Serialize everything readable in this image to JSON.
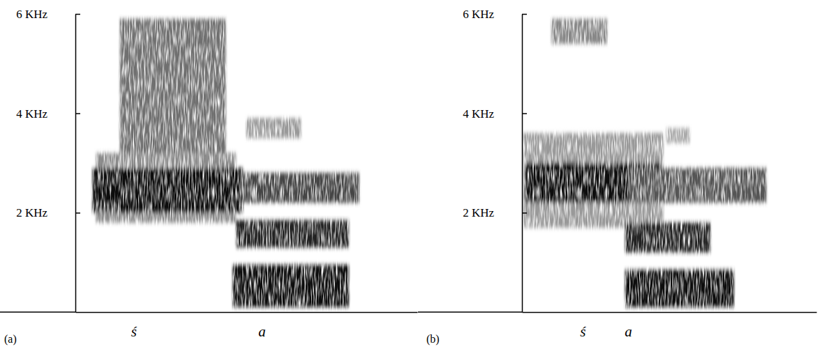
{
  "chart_data": [
    {
      "type": "spectrogram",
      "title": "(a)",
      "xlim": [
        0,
        100
      ],
      "ylim": [
        0,
        6
      ],
      "xticks": [
        {
          "value": 17,
          "label": "ś"
        },
        {
          "value": 54.5,
          "label": "a"
        }
      ],
      "yticks": [
        {
          "value": 2,
          "label": "2 KHz"
        },
        {
          "value": 4,
          "label": "4 KHz"
        },
        {
          "value": 6,
          "label": "6 KHz"
        }
      ],
      "bands": [
        {
          "x": [
            6,
            47
          ],
          "y": [
            1.8,
            3.2
          ],
          "color": "#8a8a8a"
        },
        {
          "x": [
            5,
            49
          ],
          "y": [
            2.0,
            2.9
          ],
          "color": "#111111"
        },
        {
          "x": [
            13,
            44
          ],
          "y": [
            3.2,
            5.9
          ],
          "color": "#707070"
        },
        {
          "x": [
            46,
            80
          ],
          "y": [
            0.1,
            0.95
          ],
          "color": "#111111"
        },
        {
          "x": [
            47,
            80
          ],
          "y": [
            1.3,
            1.85
          ],
          "color": "#222222"
        },
        {
          "x": [
            48,
            83
          ],
          "y": [
            2.2,
            2.8
          ],
          "color": "#444444"
        },
        {
          "x": [
            50,
            66
          ],
          "y": [
            3.5,
            3.9
          ],
          "color": "#999999"
        }
      ]
    },
    {
      "type": "spectrogram",
      "title": "(b)",
      "xlim": [
        0,
        100
      ],
      "ylim": [
        0,
        6
      ],
      "xticks": [
        {
          "value": 20.6,
          "label": "ś"
        },
        {
          "value": 36,
          "label": "a"
        }
      ],
      "yticks": [
        {
          "value": 2,
          "label": "2 KHz"
        },
        {
          "value": 4,
          "label": "4 KHz"
        },
        {
          "value": 6,
          "label": "6 KHz"
        }
      ],
      "bands": [
        {
          "x": [
            0.5,
            48
          ],
          "y": [
            1.7,
            3.6
          ],
          "color": "#999999"
        },
        {
          "x": [
            1,
            47
          ],
          "y": [
            2.2,
            3.0
          ],
          "color": "#111111"
        },
        {
          "x": [
            10,
            29
          ],
          "y": [
            5.4,
            5.9
          ],
          "color": "#888888"
        },
        {
          "x": [
            35,
            72
          ],
          "y": [
            0.1,
            0.85
          ],
          "color": "#111111"
        },
        {
          "x": [
            35,
            64
          ],
          "y": [
            1.2,
            1.8
          ],
          "color": "#222222"
        },
        {
          "x": [
            36,
            83
          ],
          "y": [
            2.2,
            2.9
          ],
          "color": "#555555"
        },
        {
          "x": [
            49,
            57
          ],
          "y": [
            3.4,
            3.7
          ],
          "color": "#aaaaaa"
        }
      ]
    }
  ]
}
